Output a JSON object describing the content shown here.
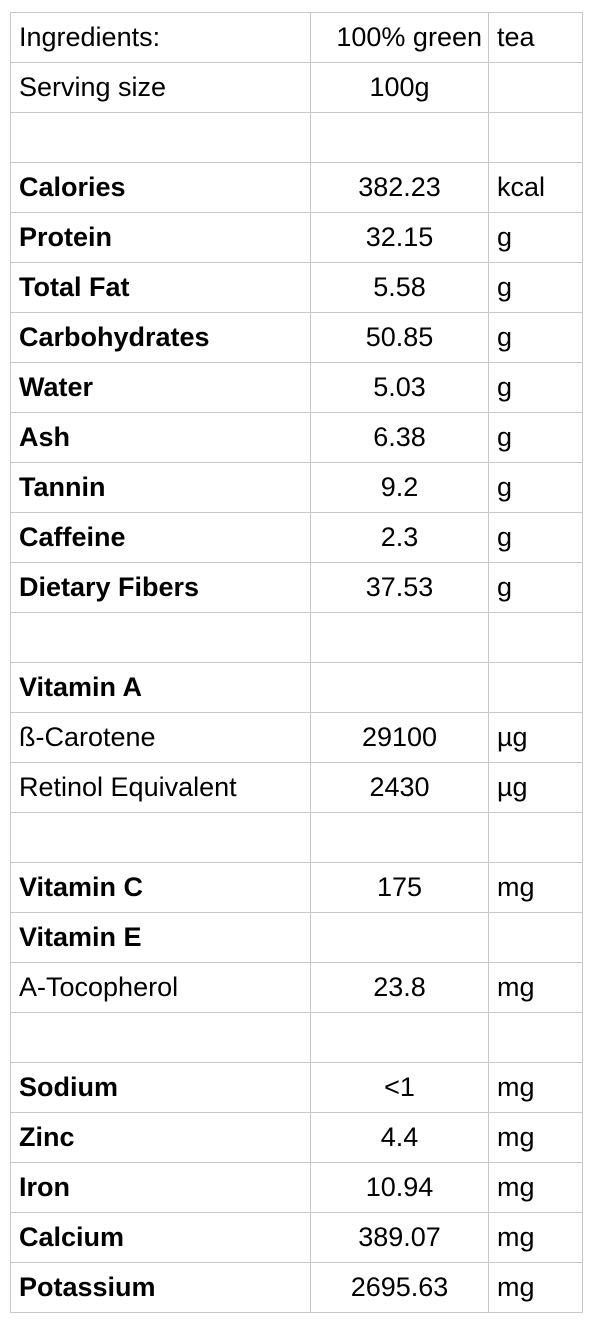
{
  "header": {
    "ingredients": {
      "label": "Ingredients:",
      "value": "100% green",
      "unit": "tea"
    },
    "serving": {
      "label": "Serving size",
      "value": "100g",
      "unit": ""
    }
  },
  "rows": [
    {
      "name": "",
      "value": "",
      "unit": "",
      "bold": false
    },
    {
      "name": "Calories",
      "value": "382.23",
      "unit": "kcal",
      "bold": true
    },
    {
      "name": "Protein",
      "value": "32.15",
      "unit": "g",
      "bold": true
    },
    {
      "name": "Total Fat",
      "value": "5.58",
      "unit": "g",
      "bold": true
    },
    {
      "name": "Carbohydrates",
      "value": "50.85",
      "unit": "g",
      "bold": true
    },
    {
      "name": "Water",
      "value": "5.03",
      "unit": "g",
      "bold": true
    },
    {
      "name": "Ash",
      "value": "6.38",
      "unit": "g",
      "bold": true
    },
    {
      "name": "Tannin",
      "value": "9.2",
      "unit": "g",
      "bold": true
    },
    {
      "name": "Caffeine",
      "value": "2.3",
      "unit": "g",
      "bold": true
    },
    {
      "name": "Dietary Fibers",
      "value": "37.53",
      "unit": "g",
      "bold": true
    },
    {
      "name": "",
      "value": "",
      "unit": "",
      "bold": false
    },
    {
      "name": "Vitamin A",
      "value": "",
      "unit": "",
      "bold": true
    },
    {
      "name": "ß-Carotene",
      "value": "29100",
      "unit": "µg",
      "bold": false
    },
    {
      "name": "Retinol Equivalent",
      "value": "2430",
      "unit": "µg",
      "bold": false
    },
    {
      "name": "",
      "value": "",
      "unit": "",
      "bold": false
    },
    {
      "name": "Vitamin C",
      "value": "175",
      "unit": "mg",
      "bold": true
    },
    {
      "name": "Vitamin E",
      "value": "",
      "unit": "",
      "bold": true
    },
    {
      "name": "A-Tocopherol",
      "value": "23.8",
      "unit": "mg",
      "bold": false
    },
    {
      "name": "",
      "value": "",
      "unit": "",
      "bold": false
    },
    {
      "name": "Sodium",
      "value": "<1",
      "unit": "mg",
      "bold": true
    },
    {
      "name": "Zinc",
      "value": "4.4",
      "unit": "mg",
      "bold": true
    },
    {
      "name": "Iron",
      "value": "10.94",
      "unit": "mg",
      "bold": true
    },
    {
      "name": "Calcium",
      "value": "389.07",
      "unit": "mg",
      "bold": true
    },
    {
      "name": "Potassium",
      "value": "2695.63",
      "unit": "mg",
      "bold": true
    }
  ]
}
